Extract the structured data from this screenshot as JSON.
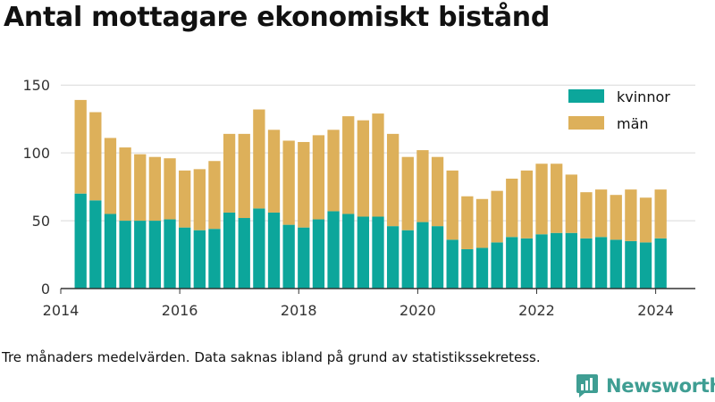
{
  "title": "Antal mottagare ekonomiskt bistånd",
  "footnote": "Tre månaders medelvärden. Data saknas ibland på grund av statistikssekretess.",
  "brand": {
    "name": "Newsworthy",
    "logo_icon": "chart-bubble-icon",
    "color": "#3f9e93"
  },
  "chart_data": {
    "type": "bar",
    "stacked": true,
    "x": [
      "2014-05",
      "2014-08",
      "2014-11",
      "2015-02",
      "2015-05",
      "2015-08",
      "2015-11",
      "2016-02",
      "2016-05",
      "2016-08",
      "2016-11",
      "2017-02",
      "2017-05",
      "2017-08",
      "2017-11",
      "2018-02",
      "2018-05",
      "2018-08",
      "2018-11",
      "2019-02",
      "2019-05",
      "2019-08",
      "2019-11",
      "2020-02",
      "2020-05",
      "2020-08",
      "2020-11",
      "2021-02",
      "2021-05",
      "2021-08",
      "2021-11",
      "2022-02",
      "2022-05",
      "2022-08",
      "2022-11",
      "2023-02",
      "2023-05",
      "2023-08",
      "2023-11",
      "2024-02"
    ],
    "series": [
      {
        "name": "kvinnor",
        "color": "#0ca69b",
        "values": [
          70,
          65,
          55,
          50,
          50,
          50,
          51,
          45,
          43,
          44,
          56,
          52,
          59,
          56,
          47,
          45,
          51,
          57,
          55,
          53,
          53,
          46,
          43,
          49,
          46,
          36,
          29,
          30,
          34,
          38,
          37,
          40,
          41,
          41,
          37,
          38,
          36,
          35,
          34,
          37
        ]
      },
      {
        "name": "män",
        "color": "#ddb05a",
        "values": [
          69,
          65,
          56,
          54,
          49,
          47,
          45,
          42,
          45,
          50,
          58,
          62,
          73,
          61,
          62,
          63,
          62,
          60,
          72,
          71,
          76,
          68,
          54,
          53,
          51,
          51,
          39,
          36,
          38,
          43,
          50,
          52,
          51,
          43,
          34,
          35,
          33,
          38,
          33,
          36
        ]
      }
    ],
    "xticks": [
      "2014",
      "2016",
      "2018",
      "2020",
      "2022",
      "2024"
    ],
    "yticks": [
      0,
      50,
      100,
      150
    ],
    "ylim": [
      0,
      160
    ],
    "xlim": [
      "2014-01",
      "2024-09"
    ],
    "grid": "horizontal",
    "legend": "top-right"
  }
}
